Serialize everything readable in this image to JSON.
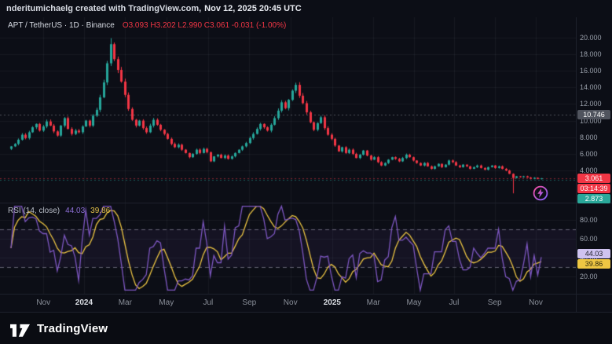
{
  "header": {
    "attribution": "nderitumichaelg created with TradingView.com,",
    "timestamp": "Nov 12, 2025 20:45 UTC"
  },
  "symbol": {
    "title": "APT / TetherUS · 1D · Binance",
    "ohlc": "O3.093 H3.202 L2.990 C3.061 -0.031 (-1.00%)"
  },
  "price_axis": {
    "badges": {
      "gray": "10.746",
      "last": "3.061",
      "countdown": "03:14:39",
      "low": "2.873"
    }
  },
  "rsi": {
    "label": "RSI (14, close)",
    "value": "44.03",
    "ma": "39.86"
  },
  "time_axis": {
    "labels": [
      {
        "text": "Nov",
        "pos": 0.063,
        "major": false
      },
      {
        "text": "2024",
        "pos": 0.135,
        "major": true
      },
      {
        "text": "Mar",
        "pos": 0.208,
        "major": false
      },
      {
        "text": "May",
        "pos": 0.281,
        "major": false
      },
      {
        "text": "Jul",
        "pos": 0.355,
        "major": false
      },
      {
        "text": "Sep",
        "pos": 0.428,
        "major": false
      },
      {
        "text": "Nov",
        "pos": 0.501,
        "major": false
      },
      {
        "text": "2025",
        "pos": 0.575,
        "major": true
      },
      {
        "text": "Mar",
        "pos": 0.648,
        "major": false
      },
      {
        "text": "May",
        "pos": 0.72,
        "major": false
      },
      {
        "text": "Jul",
        "pos": 0.791,
        "major": false
      },
      {
        "text": "Sep",
        "pos": 0.863,
        "major": false
      },
      {
        "text": "Nov",
        "pos": 0.936,
        "major": false
      }
    ]
  },
  "footer": {
    "brand": "TradingView"
  },
  "colors": {
    "bg": "#0c0e16",
    "grid": "rgba(170,178,197,0.07)",
    "up": "#26a69a",
    "down": "#f23645",
    "rsi": "#7e57c2",
    "rsi_ma": "#eec643",
    "level_gray": "rgba(160,165,175,0.45)",
    "level_red": "rgba(242,54,69,0.55)",
    "level_teal": "rgba(42,168,154,0.5)",
    "band_fill": "rgba(126,87,194,0.08)",
    "band_line": "rgba(186,182,205,0.5)"
  },
  "chart_data": [
    {
      "type": "candlestick",
      "title": "APT / TetherUS",
      "interval": "1D",
      "exchange": "Binance",
      "last_bar": {
        "open": 3.093,
        "high": 3.202,
        "low": 2.99,
        "close": 3.061,
        "change": -0.031,
        "change_pct": -1.0
      },
      "y_ticks": [
        20,
        18,
        16,
        14,
        12,
        10,
        8,
        6,
        4
      ],
      "ylim": [
        0.7,
        21.3
      ],
      "x_range": [
        "Nov 2023",
        "Nov 2025"
      ],
      "first_open": 6.6,
      "closes": [
        6.9,
        7.2,
        7.7,
        8.3,
        7.9,
        8.6,
        9.2,
        9.6,
        8.8,
        9.3,
        9.9,
        9.4,
        8.7,
        8.2,
        9.4,
        10.3,
        9.0,
        8.4,
        8.8,
        8.6,
        9.3,
        10.0,
        9.4,
        10.6,
        11.3,
        12.8,
        14.6,
        16.9,
        19.2,
        17.4,
        16.1,
        14.7,
        13.1,
        11.4,
        10.1,
        9.4,
        10.0,
        9.1,
        8.6,
        9.4,
        10.1,
        9.5,
        8.9,
        8.4,
        7.8,
        7.2,
        6.8,
        7.1,
        6.5,
        6.1,
        5.6,
        6.0,
        6.5,
        6.1,
        6.6,
        6.2,
        5.1,
        5.7,
        5.9,
        5.5,
        5.8,
        5.4,
        5.7,
        6.1,
        6.5,
        6.9,
        7.3,
        7.9,
        8.4,
        9.0,
        9.6,
        9.2,
        8.8,
        9.5,
        10.3,
        11.2,
        12.2,
        11.5,
        12.5,
        13.6,
        14.3,
        13.0,
        12.1,
        11.0,
        9.8,
        8.9,
        9.7,
        10.4,
        9.1,
        8.3,
        7.8,
        7.0,
        6.3,
        6.8,
        6.1,
        6.5,
        6.0,
        5.5,
        5.9,
        6.4,
        5.8,
        5.3,
        5.6,
        5.0,
        4.6,
        4.9,
        5.3,
        5.6,
        5.4,
        5.1,
        5.5,
        5.9,
        5.6,
        5.2,
        4.9,
        4.6,
        4.9,
        4.5,
        4.2,
        4.5,
        4.8,
        4.4,
        4.7,
        5.2,
        5.0,
        4.6,
        4.4,
        4.7,
        4.5,
        4.2,
        4.4,
        4.6,
        4.3,
        4.1,
        4.4,
        4.6,
        4.3,
        4.5,
        4.2,
        4.0,
        3.6,
        3.1,
        3.3,
        3.2,
        3.3,
        3.15,
        3.0,
        3.12,
        2.99,
        3.061
      ],
      "special_highs": {
        "28": 19.92
      },
      "special_lows": {
        "141": 1.25
      },
      "levels": {
        "upper_gray": 10.746,
        "last": 3.061,
        "low_teal": 2.873
      }
    },
    {
      "type": "line",
      "name": "RSI (14, close)",
      "series": [
        {
          "name": "RSI",
          "color": "#7e57c2",
          "last": 44.03
        },
        {
          "name": "RSI-based MA",
          "color": "#eec643",
          "last": 39.86
        }
      ],
      "bands": {
        "upper": 70,
        "lower": 30
      },
      "y_ticks": [
        80,
        60,
        40,
        20
      ],
      "ylim": [
        8,
        92
      ],
      "source": "computed from candlestick closes"
    }
  ]
}
